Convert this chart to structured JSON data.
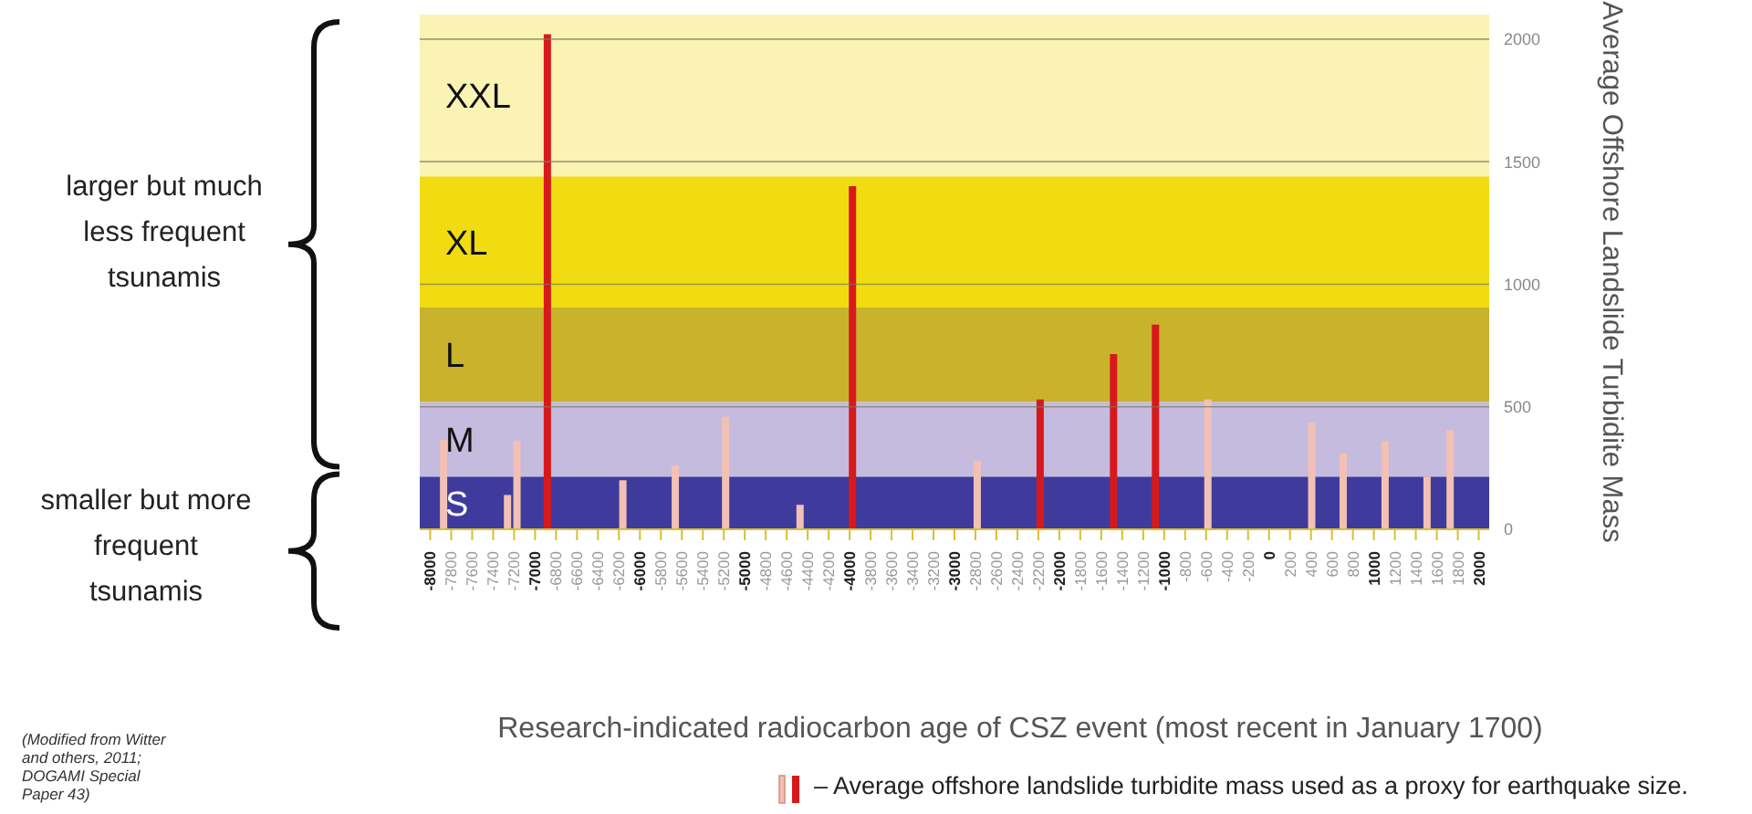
{
  "chart_data": {
    "type": "bar",
    "xlabel": "Research-indicated radiocarbon age of CSZ event (most recent in January 1700)",
    "ylabel": "Average Offshore Landslide Turbidite Mass",
    "x": [
      -7880,
      -7270,
      -7180,
      -6890,
      -6170,
      -5670,
      -5190,
      -4480,
      -3980,
      -2790,
      -2190,
      -1490,
      -1090,
      -590,
      400,
      700,
      1100,
      1500,
      1720
    ],
    "values": [
      365,
      140,
      360,
      2020,
      200,
      260,
      460,
      100,
      1400,
      280,
      530,
      715,
      835,
      530,
      435,
      310,
      360,
      215,
      405
    ],
    "colors": [
      "#f2c0b4",
      "#f2c0b4",
      "#f2c0b4",
      "#d7191c",
      "#f2c0b4",
      "#f2c0b4",
      "#f2c0b4",
      "#f2c0b4",
      "#d7191c",
      "#f2c0b4",
      "#d7191c",
      "#d7191c",
      "#d7191c",
      "#f2c0b4",
      "#f2c0b4",
      "#f2c0b4",
      "#f2c0b4",
      "#f2c0b4",
      "#f2c0b4"
    ],
    "xlim": [
      -8100,
      2100
    ],
    "xticks": [
      -8000,
      -7800,
      -7600,
      -7400,
      -7200,
      -7000,
      -6800,
      -6600,
      -6400,
      -6200,
      -6000,
      -5800,
      -5600,
      -5400,
      -5200,
      -5000,
      -4800,
      -4600,
      -4400,
      -4200,
      -4000,
      -3800,
      -3600,
      -3400,
      -3200,
      -3000,
      -2800,
      -2600,
      -2400,
      -2200,
      -2000,
      -1800,
      -1600,
      -1400,
      -1200,
      -1000,
      -800,
      -600,
      -400,
      -200,
      0,
      200,
      400,
      600,
      800,
      1000,
      1200,
      1400,
      1600,
      1800,
      2000
    ],
    "ylim": [
      0,
      2100
    ],
    "yticks": [
      0,
      500,
      1000,
      1500,
      2000
    ],
    "grid": "y",
    "bands": [
      {
        "axis": "y",
        "from": 0,
        "to": 215,
        "label": "S",
        "color": "#3f3b9c"
      },
      {
        "axis": "y",
        "from": 215,
        "to": 520,
        "label": "M",
        "color": "#c5bbdf"
      },
      {
        "axis": "y",
        "from": 520,
        "to": 905,
        "label": "L",
        "color": "#c9b22c"
      },
      {
        "axis": "y",
        "from": 905,
        "to": 1440,
        "label": "XL",
        "color": "#f1dc12"
      },
      {
        "axis": "y",
        "from": 1440,
        "to": 2100,
        "label": "XXL",
        "color": "#fbf3b4"
      }
    ],
    "annotations": [
      "larger but much less frequent tsunamis",
      "smaller but more frequent tsunamis",
      "– Average offshore landslide turbidite mass used as a proxy for earthquake size.",
      "(Modified from Witter and others, 2011; DOGAMI Special Paper 43)"
    ]
  }
}
